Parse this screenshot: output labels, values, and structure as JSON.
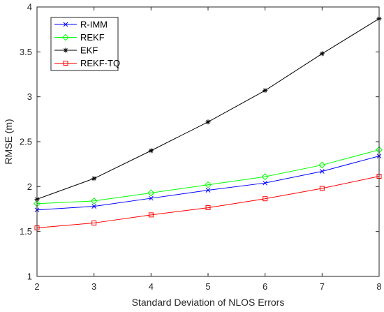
{
  "chart_data": {
    "type": "line",
    "title": "",
    "xlabel": "Standard Deviation of NLOS Errors",
    "ylabel": "RMSE (m)",
    "xlim": [
      2,
      8
    ],
    "ylim": [
      1,
      4
    ],
    "xticks": [
      2,
      3,
      4,
      5,
      6,
      7,
      8
    ],
    "yticks": [
      1,
      1.5,
      2,
      2.5,
      3,
      3.5,
      4
    ],
    "ytick_labels": [
      "1",
      "1.5",
      "2",
      "2.5",
      "3",
      "3.5",
      "4"
    ],
    "grid": false,
    "legend_position": "top-left",
    "x": [
      2,
      3,
      4,
      5,
      6,
      7,
      8
    ],
    "series": [
      {
        "name": "R-IMM",
        "color": "#0000ff",
        "marker": "x",
        "values": [
          1.74,
          1.78,
          1.87,
          1.96,
          2.04,
          2.17,
          2.34
        ]
      },
      {
        "name": "REKF",
        "color": "#00ff00",
        "marker": "diamond",
        "values": [
          1.81,
          1.84,
          1.93,
          2.02,
          2.11,
          2.24,
          2.41
        ]
      },
      {
        "name": "EKF",
        "color": "#000000",
        "marker": "asterisk",
        "values": [
          1.86,
          2.09,
          2.4,
          2.72,
          3.07,
          3.48,
          3.87
        ]
      },
      {
        "name": "REKF-TQ",
        "color": "#ff0000",
        "marker": "square",
        "values": [
          1.54,
          1.595,
          1.685,
          1.765,
          1.865,
          1.98,
          2.115
        ]
      }
    ]
  }
}
